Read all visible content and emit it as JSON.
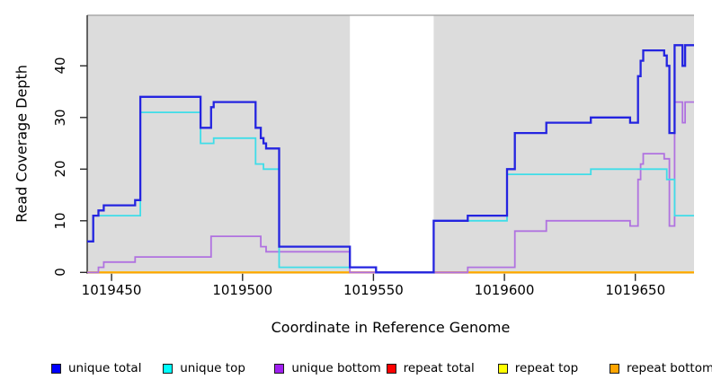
{
  "chart_data": {
    "type": "line",
    "subtype": "step",
    "title": "",
    "x_axis": {
      "label": "Coordinate in Reference Genome",
      "ticks": [
        1019450,
        1019500,
        1019550,
        1019600,
        1019650
      ],
      "range": [
        1019440.7,
        1019672.4
      ],
      "grid": false
    },
    "y_axis": {
      "label": "Read Coverage Depth",
      "ticks": [
        0,
        10,
        20,
        30,
        40
      ],
      "range": [
        0,
        49.8
      ],
      "grid": false
    },
    "colors": {
      "plot_shading": "#dcdcdc",
      "top_border": "#9c9c9c",
      "axis": "#2a2a2a"
    },
    "shaded_regions": [
      {
        "x0": 1019440.7,
        "x1": 1019541
      },
      {
        "x0": 1019573,
        "x1": 1019672.4
      }
    ],
    "series": [
      {
        "name": "repeat top",
        "color": "#ffff00",
        "line_width": 2,
        "points": [
          [
            1019440.7,
            0
          ]
        ]
      },
      {
        "name": "repeat bottom",
        "color": "#ffa500",
        "line_width": 2.2,
        "points": [
          [
            1019440.7,
            0
          ]
        ]
      },
      {
        "name": "repeat total",
        "color": "#e0507a",
        "line_width": 1.8,
        "points": [
          [
            1019541,
            0
          ]
        ],
        "x_end": 1019586
      },
      {
        "name": "unique bottom",
        "color": "#b072e0",
        "line_width": 1.8,
        "points": [
          [
            1019440.7,
            0
          ],
          [
            1019445,
            1
          ],
          [
            1019447,
            2
          ],
          [
            1019459,
            3
          ],
          [
            1019488,
            7
          ],
          [
            1019507,
            5
          ],
          [
            1019509,
            4
          ],
          [
            1019541,
            0
          ],
          [
            1019586,
            1
          ],
          [
            1019604,
            8
          ],
          [
            1019616,
            10
          ],
          [
            1019648,
            9
          ],
          [
            1019651,
            18
          ],
          [
            1019652,
            21
          ],
          [
            1019653,
            23
          ],
          [
            1019661,
            22
          ],
          [
            1019663,
            9
          ],
          [
            1019665,
            33
          ],
          [
            1019668,
            29
          ],
          [
            1019669,
            33
          ]
        ]
      },
      {
        "name": "unique top",
        "color": "#3fdde8",
        "line_width": 1.8,
        "points": [
          [
            1019440.7,
            6
          ],
          [
            1019443,
            11
          ],
          [
            1019461,
            31
          ],
          [
            1019484,
            25
          ],
          [
            1019489,
            26
          ],
          [
            1019505,
            21
          ],
          [
            1019508,
            20
          ],
          [
            1019514,
            1
          ],
          [
            1019551,
            0
          ],
          [
            1019573,
            10
          ],
          [
            1019601,
            19
          ],
          [
            1019633,
            20
          ],
          [
            1019662,
            18
          ],
          [
            1019665,
            11
          ]
        ]
      },
      {
        "name": "unique total",
        "color": "#2424e0",
        "line_width": 2.3,
        "points": [
          [
            1019440.7,
            6
          ],
          [
            1019443,
            11
          ],
          [
            1019445,
            12
          ],
          [
            1019447,
            13
          ],
          [
            1019459,
            14
          ],
          [
            1019461,
            34
          ],
          [
            1019484,
            28
          ],
          [
            1019488,
            32
          ],
          [
            1019489,
            33
          ],
          [
            1019505,
            28
          ],
          [
            1019507,
            26
          ],
          [
            1019508,
            25
          ],
          [
            1019509,
            24
          ],
          [
            1019514,
            5
          ],
          [
            1019541,
            1
          ],
          [
            1019551,
            0
          ],
          [
            1019573,
            10
          ],
          [
            1019586,
            11
          ],
          [
            1019601,
            20
          ],
          [
            1019604,
            27
          ],
          [
            1019616,
            29
          ],
          [
            1019633,
            30
          ],
          [
            1019648,
            29
          ],
          [
            1019651,
            38
          ],
          [
            1019652,
            41
          ],
          [
            1019653,
            43
          ],
          [
            1019661,
            42
          ],
          [
            1019662,
            40
          ],
          [
            1019663,
            27
          ],
          [
            1019665,
            44
          ],
          [
            1019668,
            40
          ],
          [
            1019669,
            44
          ]
        ]
      }
    ],
    "legend": {
      "position": "bottom",
      "items": [
        {
          "label": "unique total",
          "color": "#0000ff"
        },
        {
          "label": "unique top",
          "color": "#00ffff"
        },
        {
          "label": "unique bottom",
          "color": "#a020f0"
        },
        {
          "label": "repeat total",
          "color": "#ff0000"
        },
        {
          "label": "repeat top",
          "color": "#ffff00"
        },
        {
          "label": "repeat bottom",
          "color": "#ffa500"
        }
      ]
    }
  }
}
